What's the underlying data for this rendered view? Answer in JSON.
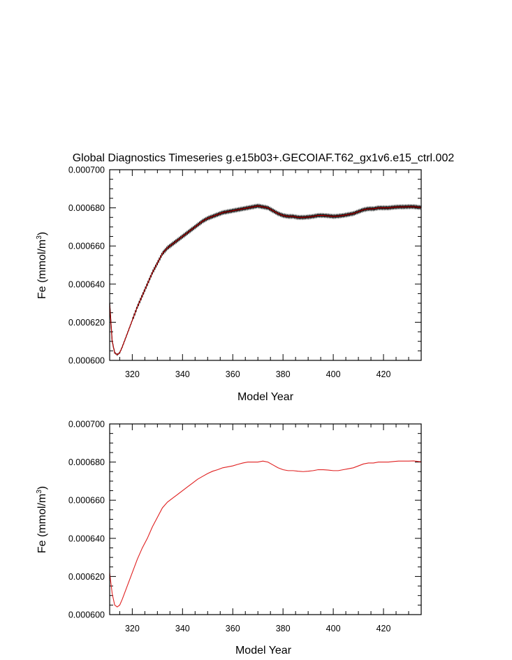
{
  "chart_data": [
    {
      "type": "line",
      "title": "Global Diagnostics Timeseries g.e15b03+.GECOIAF.T62_gx1v6.e15_ctrl.002",
      "xlabel": "Model Year",
      "ylabel": "Fe (mmol/m",
      "ylabel_sup": "3",
      "ylabel_close": ")",
      "xlim": [
        311,
        435
      ],
      "ylim": [
        0.0006,
        0.0007
      ],
      "xticks": [
        320,
        340,
        360,
        380,
        400,
        420
      ],
      "yticks": [
        "0.000600",
        "0.000620",
        "0.000640",
        "0.000660",
        "0.000680",
        "0.000700"
      ],
      "grid": false,
      "series": [
        {
          "style": "monthly-oscillating",
          "colors": [
            "#000000",
            "#cc0000"
          ],
          "x": [
            311,
            312,
            313,
            314,
            315,
            316,
            318,
            320,
            322,
            324,
            326,
            328,
            330,
            332,
            334,
            336,
            338,
            340,
            342,
            344,
            346,
            348,
            350,
            352,
            354,
            356,
            358,
            360,
            362,
            364,
            366,
            368,
            370,
            372,
            374,
            376,
            378,
            380,
            382,
            384,
            386,
            388,
            390,
            392,
            394,
            396,
            398,
            400,
            402,
            404,
            406,
            408,
            410,
            412,
            414,
            416,
            418,
            420,
            422,
            424,
            426,
            428,
            430,
            432,
            434,
            435
          ],
          "y": [
            0.00063,
            0.00061,
            0.000604,
            0.000603,
            0.000604,
            0.000607,
            0.000614,
            0.000621,
            0.000628,
            0.000634,
            0.00064,
            0.000646,
            0.000651,
            0.000656,
            0.000659,
            0.000661,
            0.000663,
            0.000665,
            0.000667,
            0.000669,
            0.000671,
            0.000673,
            0.0006745,
            0.0006755,
            0.0006765,
            0.0006775,
            0.000678,
            0.0006785,
            0.000679,
            0.0006795,
            0.00068,
            0.0006805,
            0.000681,
            0.0006805,
            0.00068,
            0.0006785,
            0.000677,
            0.000676,
            0.0006755,
            0.0006755,
            0.000675,
            0.000675,
            0.0006752,
            0.0006755,
            0.000676,
            0.000676,
            0.0006758,
            0.0006755,
            0.0006757,
            0.000676,
            0.0006765,
            0.000677,
            0.000678,
            0.000679,
            0.0006795,
            0.0006795,
            0.00068,
            0.00068,
            0.00068,
            0.0006803,
            0.0006805,
            0.0006805,
            0.0006806,
            0.0006806,
            0.0006803,
            0.0006802
          ]
        }
      ]
    },
    {
      "type": "line",
      "title": "",
      "xlabel": "Model Year",
      "ylabel": "Fe (mmol/m",
      "ylabel_sup": "3",
      "ylabel_close": ")",
      "xlim": [
        311,
        435
      ],
      "ylim": [
        0.0006,
        0.0007
      ],
      "xticks": [
        320,
        340,
        360,
        380,
        400,
        420
      ],
      "yticks": [
        "0.000600",
        "0.000620",
        "0.000640",
        "0.000660",
        "0.000680",
        "0.000700"
      ],
      "grid": false,
      "series": [
        {
          "style": "smooth",
          "colors": [
            "#e02020"
          ],
          "x": [
            311,
            312,
            313,
            314,
            315,
            316,
            318,
            320,
            322,
            324,
            326,
            328,
            330,
            332,
            334,
            336,
            338,
            340,
            342,
            344,
            346,
            348,
            350,
            352,
            354,
            356,
            358,
            360,
            362,
            364,
            366,
            368,
            370,
            372,
            374,
            376,
            378,
            380,
            382,
            384,
            386,
            388,
            390,
            392,
            394,
            396,
            398,
            400,
            402,
            404,
            406,
            408,
            410,
            412,
            414,
            416,
            418,
            420,
            422,
            424,
            426,
            428,
            430,
            432,
            434,
            435
          ],
          "y": [
            0.000622,
            0.000611,
            0.000605,
            0.000604,
            0.000605,
            0.000608,
            0.000615,
            0.000622,
            0.000629,
            0.000635,
            0.00064,
            0.000646,
            0.000651,
            0.000656,
            0.000659,
            0.000661,
            0.000663,
            0.000665,
            0.000667,
            0.000669,
            0.000671,
            0.0006725,
            0.000674,
            0.0006752,
            0.000676,
            0.000677,
            0.0006775,
            0.000678,
            0.0006788,
            0.0006795,
            0.00068,
            0.00068,
            0.00068,
            0.0006805,
            0.00068,
            0.0006785,
            0.000677,
            0.000676,
            0.0006755,
            0.0006755,
            0.0006752,
            0.000675,
            0.0006752,
            0.0006755,
            0.000676,
            0.000676,
            0.0006758,
            0.0006755,
            0.0006755,
            0.000676,
            0.0006765,
            0.000677,
            0.000678,
            0.000679,
            0.0006795,
            0.0006795,
            0.00068,
            0.00068,
            0.00068,
            0.0006803,
            0.0006805,
            0.0006805,
            0.0006805,
            0.0006806,
            0.0006803,
            0.0006802
          ]
        }
      ]
    }
  ]
}
